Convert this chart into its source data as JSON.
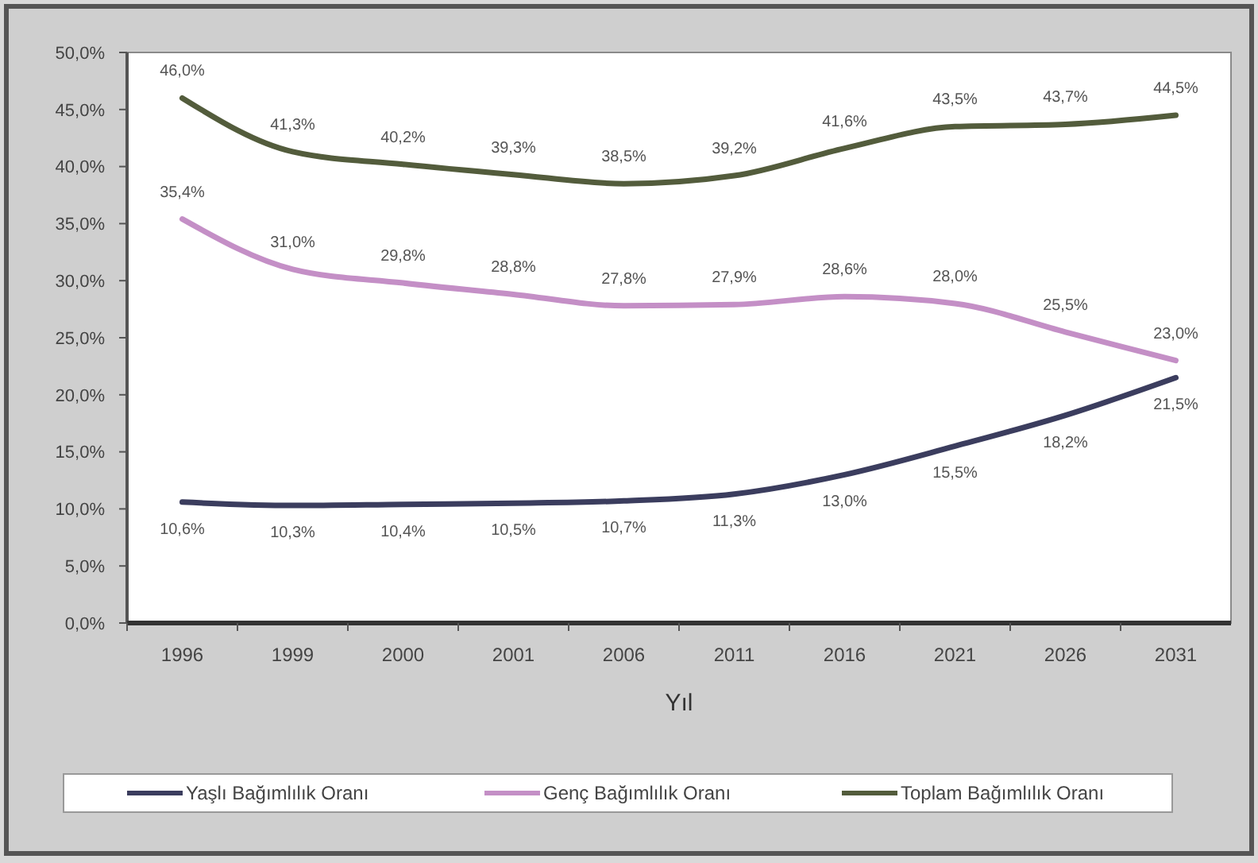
{
  "chart_data": {
    "type": "line",
    "xlabel": "Yıl",
    "categories": [
      "1996",
      "1999",
      "2000",
      "2001",
      "2006",
      "2011",
      "2016",
      "2021",
      "2026",
      "2031"
    ],
    "ylim": [
      0,
      50
    ],
    "yticks": [
      {
        "value": 0,
        "label": "0,0%"
      },
      {
        "value": 5,
        "label": "5,0%"
      },
      {
        "value": 10,
        "label": "10,0%"
      },
      {
        "value": 15,
        "label": "15,0%"
      },
      {
        "value": 20,
        "label": "20,0%"
      },
      {
        "value": 25,
        "label": "25,0%"
      },
      {
        "value": 30,
        "label": "30,0%"
      },
      {
        "value": 35,
        "label": "35,0%"
      },
      {
        "value": 40,
        "label": "40,0%"
      },
      {
        "value": 45,
        "label": "45,0%"
      },
      {
        "value": 50,
        "label": "50,0%"
      }
    ],
    "series": [
      {
        "name": "Yaşlı Bağımlılık Oranı",
        "color": "#3b3d5e",
        "values": [
          10.6,
          10.3,
          10.4,
          10.5,
          10.7,
          11.3,
          13.0,
          15.5,
          18.2,
          21.5
        ],
        "value_labels": [
          "10,6%",
          "10,3%",
          "10,4%",
          "10,5%",
          "10,7%",
          "11,3%",
          "13,0%",
          "15,5%",
          "18,2%",
          "21,5%"
        ]
      },
      {
        "name": "Genç Bağımlılık Oranı",
        "color": "#c48fc6",
        "values": [
          35.4,
          31.0,
          29.8,
          28.8,
          27.8,
          27.9,
          28.6,
          28.0,
          25.5,
          23.0
        ],
        "value_labels": [
          "35,4%",
          "31,0%",
          "29,8%",
          "28,8%",
          "27,8%",
          "27,9%",
          "28,6%",
          "28,0%",
          "25,5%",
          "23,0%"
        ]
      },
      {
        "name": "Toplam Bağımlılık Oranı",
        "color": "#535c3c",
        "values": [
          46.0,
          41.3,
          40.2,
          39.3,
          38.5,
          39.2,
          41.6,
          43.5,
          43.7,
          44.5
        ],
        "value_labels": [
          "46,0%",
          "41,3%",
          "40,2%",
          "39,3%",
          "38,5%",
          "39,2%",
          "41,6%",
          "43,5%",
          "43,7%",
          "44,5%"
        ]
      }
    ],
    "legend": "bottom"
  }
}
